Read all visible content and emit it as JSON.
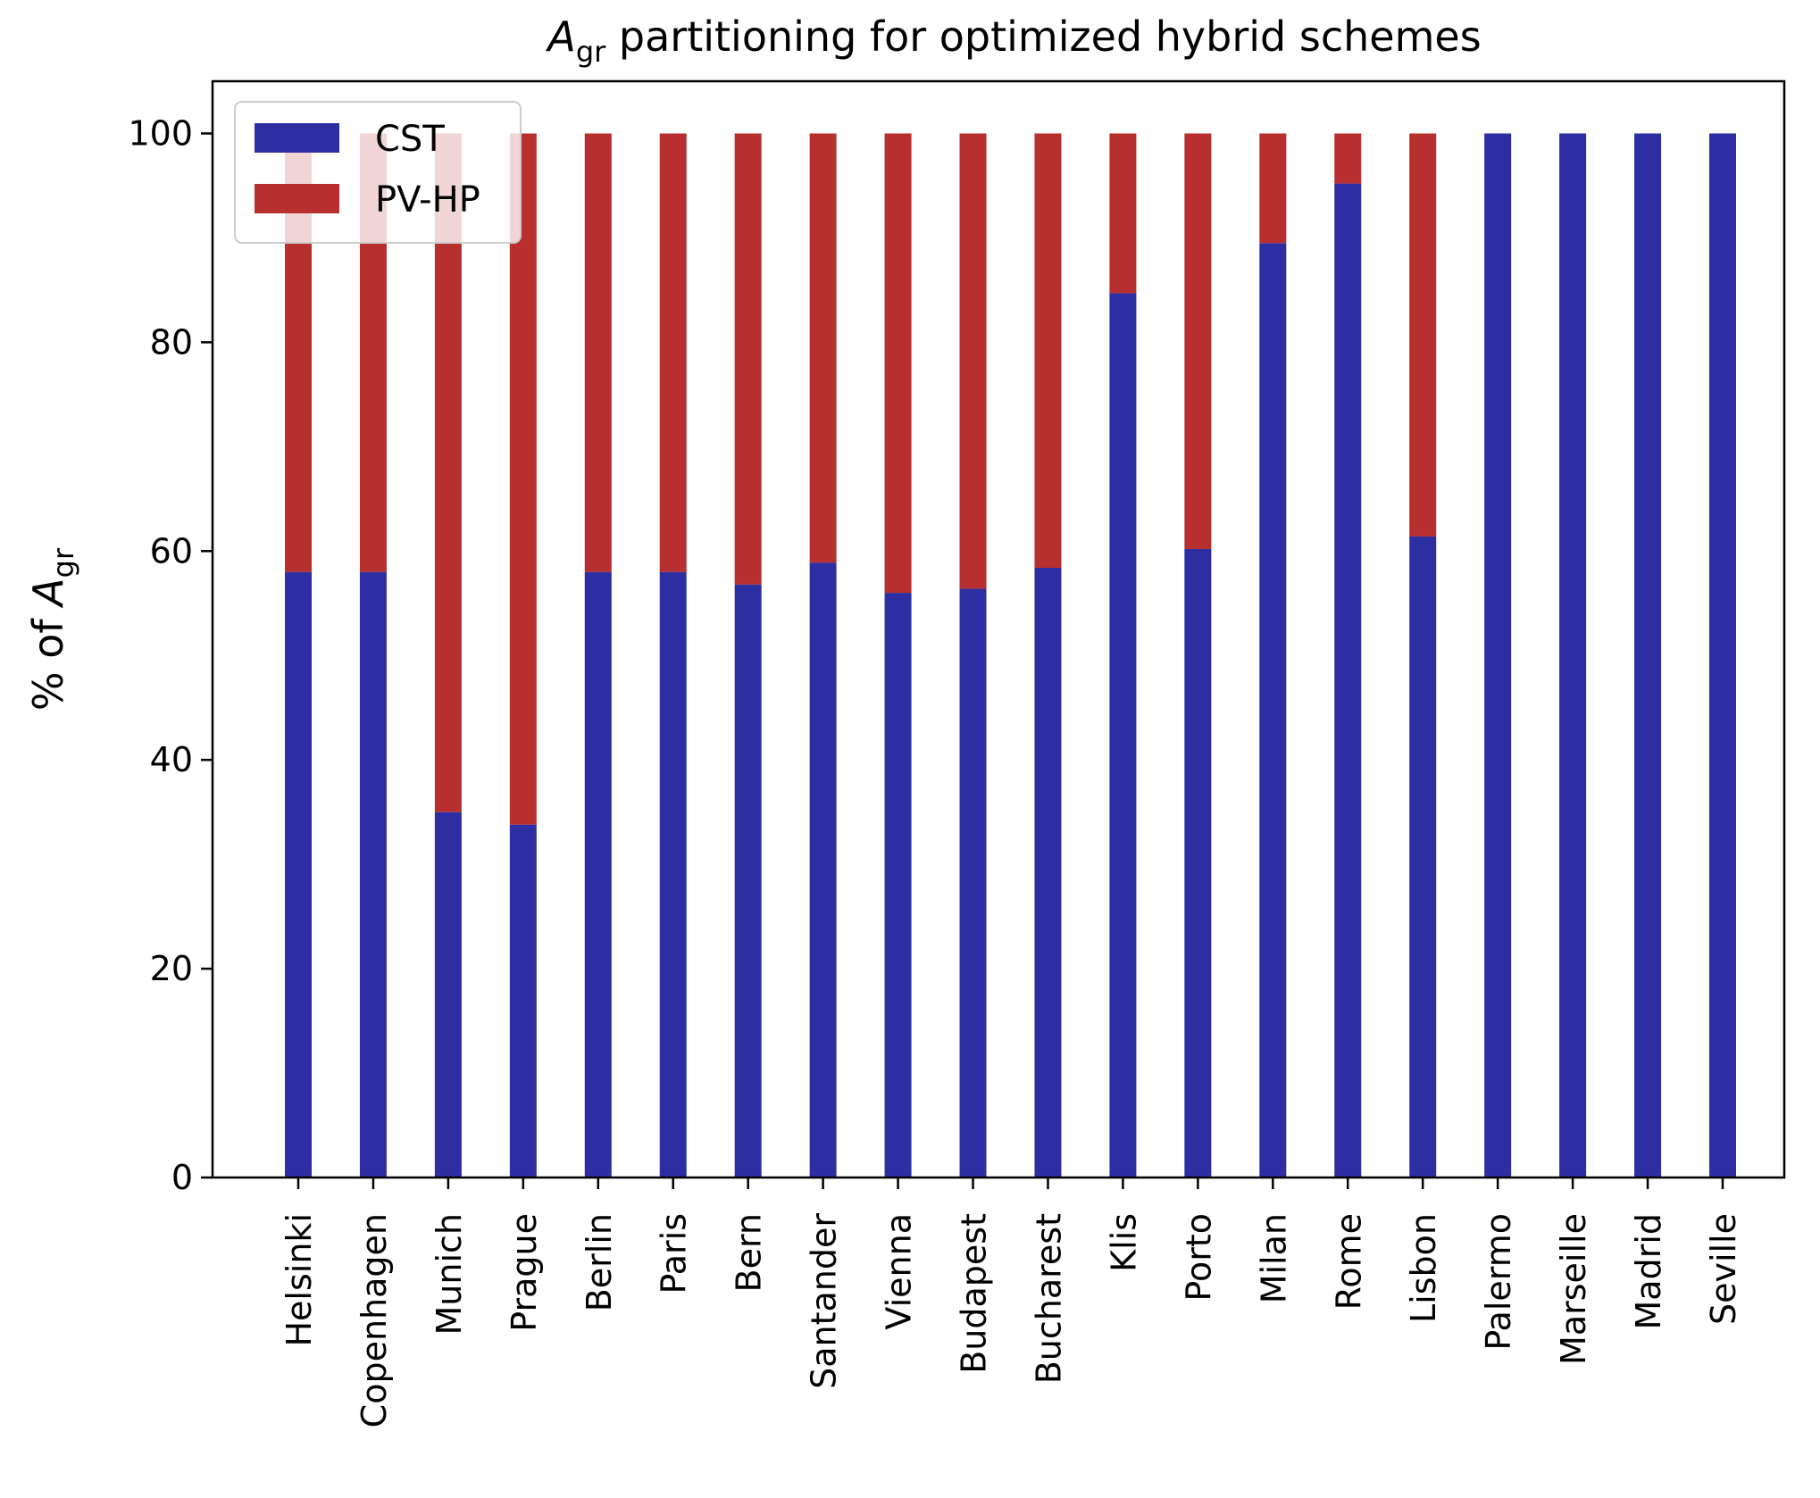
{
  "chart_data": {
    "type": "bar",
    "stacked": true,
    "title_main": "A",
    "title_sub": "gr",
    "title_rest": " partitioning for optimized hybrid schemes",
    "ylabel_prefix": "% of ",
    "ylabel_var": "A",
    "ylabel_sub": "gr",
    "xlabel": "",
    "ylim": [
      0,
      105
    ],
    "yticks": [
      "0",
      "20",
      "40",
      "60",
      "80",
      "100"
    ],
    "legend_position": "upper-left",
    "categories": [
      "Helsinki",
      "Copenhagen",
      "Munich",
      "Prague",
      "Berlin",
      "Paris",
      "Bern",
      "Santander",
      "Vienna",
      "Budapest",
      "Bucharest",
      "Klis",
      "Porto",
      "Milan",
      "Rome",
      "Lisbon",
      "Palermo",
      "Marseille",
      "Madrid",
      "Seville"
    ],
    "series": [
      {
        "name": "CST",
        "color": "#2e2ea3",
        "values": [
          58,
          58,
          35,
          33.8,
          58,
          58,
          56.8,
          58.9,
          56,
          56.4,
          58.4,
          84.7,
          60.2,
          89.5,
          95.2,
          61.4,
          100,
          100,
          100,
          100
        ]
      },
      {
        "name": "PV-HP",
        "color": "#b82f2f",
        "values": [
          42,
          42,
          65,
          66.2,
          42,
          42,
          43.2,
          41.1,
          44,
          43.6,
          41.6,
          15.3,
          39.8,
          10.5,
          4.8,
          38.6,
          0,
          0,
          0,
          0
        ]
      }
    ]
  }
}
